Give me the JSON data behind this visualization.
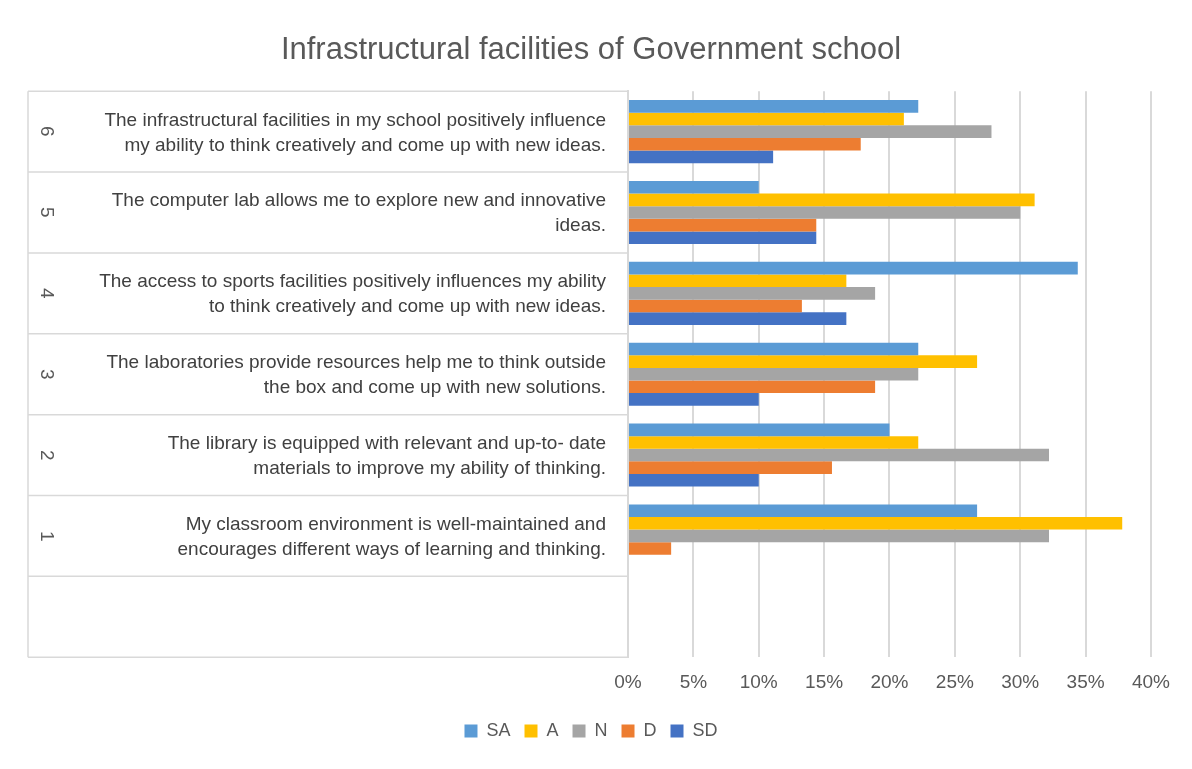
{
  "chart_data": {
    "type": "bar",
    "orientation": "horizontal",
    "title": "Infrastructural facilities of Government school",
    "categories": [
      "6 The infrastructural facilities in my school positively influence my ability to think creatively and come up with new ideas.",
      "5 The computer lab allows me to explore new and innovative ideas.",
      "4 The access to sports facilities positively influences my ability to think creatively and come up with new ideas.",
      "3 The laboratories provide resources help me to think outside the box and come up with new solutions.",
      "2 The library is equipped with relevant and up-to- date materials to improve my ability of thinking.",
      "1 My classroom environment is well-maintained and encourages different ways of learning and thinking.",
      null
    ],
    "series": [
      {
        "name": "SA",
        "color": "#5b9bd5",
        "values": [
          22.2,
          10.0,
          34.4,
          22.2,
          20.0,
          26.7,
          null
        ]
      },
      {
        "name": "A",
        "color": "#ffc000",
        "values": [
          21.1,
          31.1,
          16.7,
          26.7,
          22.2,
          37.8,
          null
        ]
      },
      {
        "name": "N",
        "color": "#a5a5a5",
        "values": [
          27.8,
          30.0,
          18.9,
          22.2,
          32.2,
          32.2,
          null
        ]
      },
      {
        "name": "D",
        "color": "#ed7d31",
        "values": [
          17.8,
          14.4,
          13.3,
          18.9,
          15.6,
          3.3,
          null
        ]
      },
      {
        "name": "SD",
        "color": "#4472c4",
        "values": [
          11.1,
          14.4,
          16.7,
          10.0,
          10.0,
          0,
          null
        ]
      }
    ],
    "xlim": [
      0,
      40
    ],
    "xticks": [
      {
        "value": 0,
        "label": "0%"
      },
      {
        "value": 5,
        "label": "5%"
      },
      {
        "value": 10,
        "label": "10%"
      },
      {
        "value": 15,
        "label": "15%"
      },
      {
        "value": 20,
        "label": "20%"
      },
      {
        "value": 25,
        "label": "25%"
      },
      {
        "value": 30,
        "label": "30%"
      },
      {
        "value": 35,
        "label": "35%"
      },
      {
        "value": 40,
        "label": "40%"
      }
    ],
    "grid": "x",
    "legend": "bottom"
  }
}
